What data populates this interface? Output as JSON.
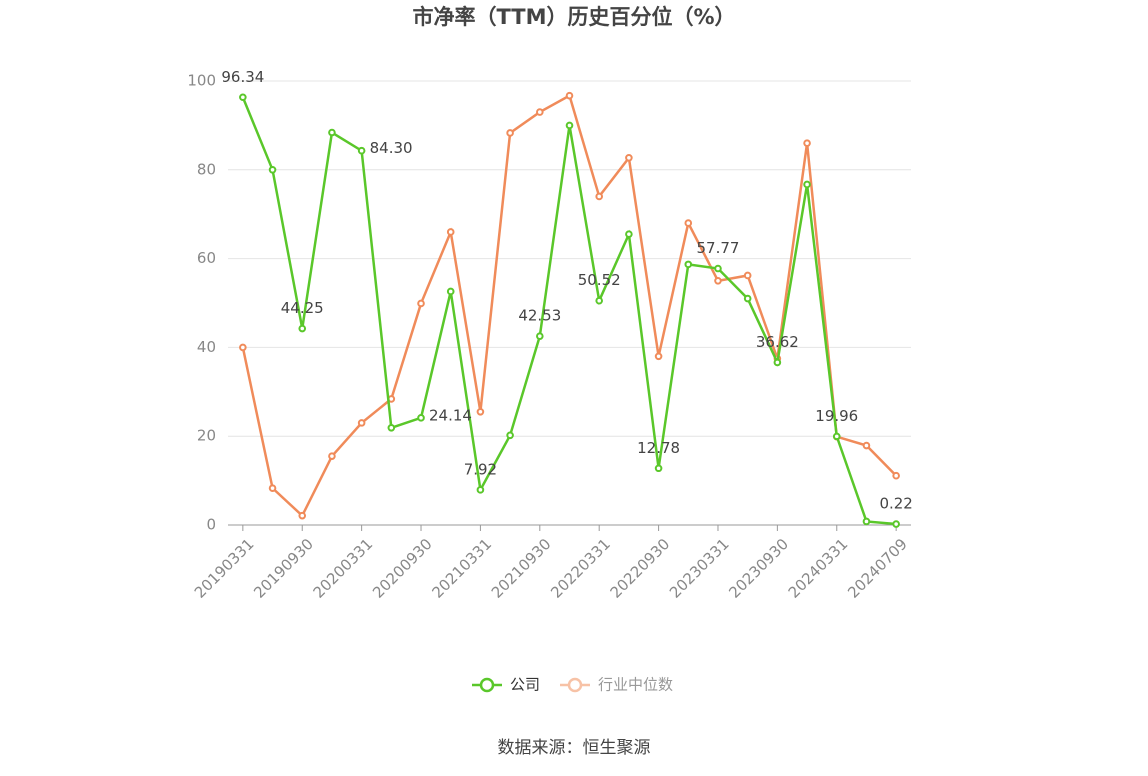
{
  "chart_data": {
    "type": "line",
    "title": "市净率（TTM）历史百分位（%）",
    "source": "数据来源：恒生聚源",
    "categories": [
      "20190331",
      null,
      "20190930",
      null,
      "20200331",
      null,
      "20200930",
      null,
      "20210331",
      null,
      "20210930",
      null,
      "20220331",
      null,
      "20220930",
      null,
      "20230331",
      null,
      "20230930",
      null,
      "20240331",
      null,
      "20240709"
    ],
    "series": [
      {
        "name": "公司",
        "color": "#5ac72a",
        "values": [
          96.34,
          80,
          44.25,
          88.4,
          84.3,
          21.9,
          24.14,
          52.6,
          7.92,
          20.2,
          42.53,
          90,
          50.52,
          65.5,
          12.78,
          58.7,
          57.77,
          51,
          36.62,
          76.7,
          19.96,
          0.8,
          0.22
        ],
        "value_labels": [
          "96.34",
          null,
          "44.25",
          null,
          "84.30",
          null,
          "24.14",
          null,
          "7.92",
          null,
          "42.53",
          null,
          "50.52",
          null,
          "12.78",
          null,
          "57.77",
          null,
          "36.62",
          null,
          "19.96",
          null,
          "0.22"
        ]
      },
      {
        "name": "行业中位数",
        "color": "#f08b5a",
        "values": [
          40,
          8.3,
          2.1,
          15.5,
          23,
          28.4,
          49.9,
          66,
          25.5,
          88.3,
          93,
          96.7,
          74,
          82.7,
          38,
          68,
          55,
          56.2,
          37.5,
          86,
          19.9,
          17.9,
          11.1
        ]
      }
    ],
    "ylim": [
      0,
      100
    ],
    "yticks": [
      0,
      20,
      40,
      60,
      80,
      100
    ],
    "grid": true,
    "legend": "bottom"
  }
}
